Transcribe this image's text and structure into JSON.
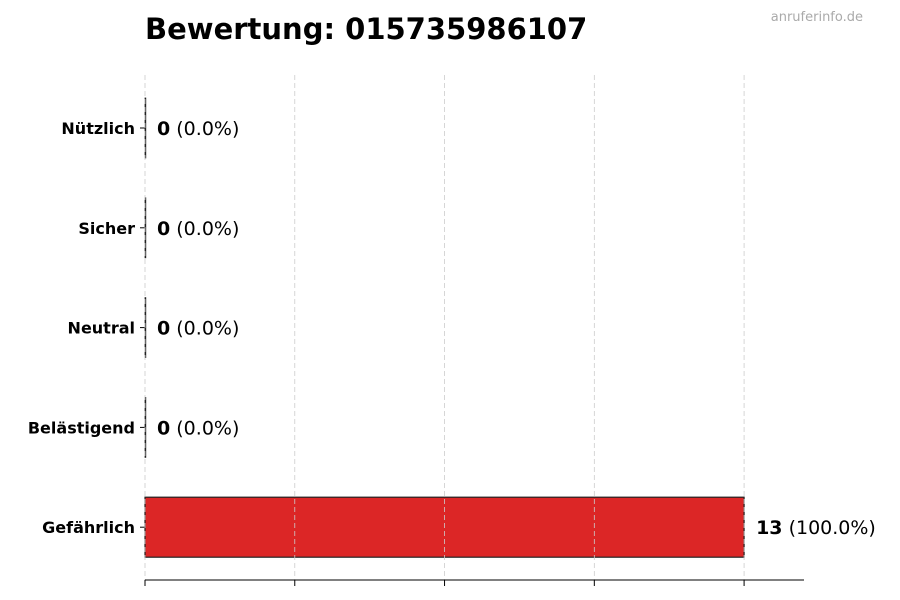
{
  "chart_data": {
    "type": "bar",
    "orientation": "horizontal",
    "title": "Bewertung: 015735986107",
    "watermark": "anruferinfo.de",
    "categories": [
      "Nützlich",
      "Sicher",
      "Neutral",
      "Belästigend",
      "Gefährlich"
    ],
    "values": [
      0,
      0,
      0,
      0,
      13
    ],
    "labels": [
      {
        "count": "0",
        "pct": "(0.0%)"
      },
      {
        "count": "0",
        "pct": "(0.0%)"
      },
      {
        "count": "0",
        "pct": "(0.0%)"
      },
      {
        "count": "0",
        "pct": "(0.0%)"
      },
      {
        "count": "13",
        "pct": "(100.0%)"
      }
    ],
    "colors": [
      "#22a04a",
      "#3b82f6",
      "#9ca3af",
      "#f59e0b",
      "#dc2626"
    ],
    "xlim": [
      0,
      14.3
    ],
    "xticks": [
      0,
      3.25,
      6.5,
      9.75,
      13
    ],
    "grid": "x dashed",
    "xlabel": "",
    "ylabel": ""
  }
}
